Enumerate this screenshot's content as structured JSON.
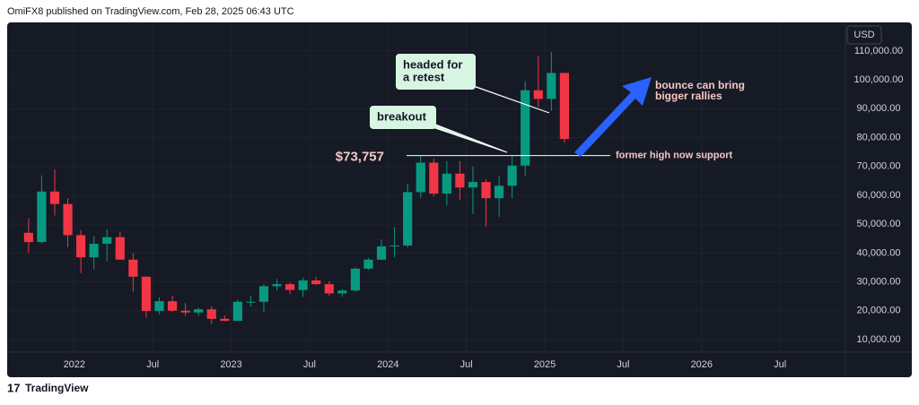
{
  "header": "OmiFX8 published on TradingView.com, Feb 28, 2025 06:43 UTC",
  "footer": "TradingView",
  "chart_data": {
    "type": "candlestick",
    "currency": "USD",
    "up_color": "#089981",
    "down_color": "#f23645",
    "x": [
      "2021-09",
      "2021-10",
      "2021-11",
      "2021-12",
      "2022-01",
      "2022-02",
      "2022-03",
      "2022-04",
      "2022-05",
      "2022-06",
      "2022-07",
      "2022-08",
      "2022-09",
      "2022-10",
      "2022-11",
      "2022-12",
      "2023-01",
      "2023-02",
      "2023-03",
      "2023-04",
      "2023-05",
      "2023-06",
      "2023-07",
      "2023-08",
      "2023-09",
      "2023-10",
      "2023-11",
      "2023-12",
      "2024-01",
      "2024-02",
      "2024-03",
      "2024-04",
      "2024-05",
      "2024-06",
      "2024-07",
      "2024-08",
      "2024-09",
      "2024-10",
      "2024-11",
      "2024-12",
      "2025-01",
      "2025-02"
    ],
    "open": [
      47000,
      43800,
      61300,
      57000,
      46200,
      38500,
      43200,
      45500,
      37700,
      31800,
      19900,
      23300,
      20000,
      19400,
      20500,
      17200,
      16500,
      23100,
      23100,
      28500,
      29200,
      27200,
      30500,
      29200,
      26000,
      27000,
      34600,
      37700,
      42300,
      42600,
      61100,
      71300,
      60600,
      67500,
      62700,
      64600,
      59000,
      63300,
      70300,
      96400,
      93400,
      102400
    ],
    "high": [
      52000,
      66900,
      69000,
      59000,
      47900,
      45800,
      48200,
      47400,
      40000,
      31900,
      24600,
      25200,
      22700,
      21000,
      21500,
      18400,
      23900,
      25200,
      29200,
      31000,
      29800,
      31400,
      31800,
      30200,
      27500,
      35000,
      38400,
      44700,
      48900,
      64000,
      73800,
      72700,
      71900,
      71900,
      70000,
      65600,
      66500,
      73600,
      99600,
      108300,
      109600,
      102500
    ],
    "low": [
      40000,
      43300,
      53000,
      42000,
      33000,
      34300,
      37200,
      37700,
      26700,
      17600,
      18800,
      19500,
      18200,
      18200,
      15500,
      16300,
      16500,
      21400,
      19600,
      27000,
      25800,
      24800,
      28900,
      25200,
      24900,
      26600,
      34100,
      37600,
      38500,
      41900,
      59000,
      59600,
      56500,
      58400,
      53500,
      49100,
      52500,
      58900,
      66800,
      90500,
      89200,
      78200
    ],
    "close": [
      43800,
      61300,
      57000,
      46200,
      38500,
      43200,
      45500,
      37700,
      31800,
      19900,
      23300,
      20000,
      19400,
      20500,
      17200,
      16500,
      23100,
      23100,
      28500,
      29200,
      27200,
      30500,
      29200,
      26000,
      27000,
      34600,
      37700,
      42300,
      42600,
      61100,
      71300,
      60600,
      67500,
      62700,
      64600,
      59000,
      63300,
      70300,
      96400,
      93400,
      102400,
      79500
    ],
    "xlim": [
      "2021-08",
      "2026-12"
    ],
    "xticks": [
      {
        "value": "2022-01",
        "label": "2022"
      },
      {
        "value": "2022-07",
        "label": "Jul"
      },
      {
        "value": "2023-01",
        "label": "2023"
      },
      {
        "value": "2023-07",
        "label": "Jul"
      },
      {
        "value": "2024-01",
        "label": "2024"
      },
      {
        "value": "2024-07",
        "label": "Jul"
      },
      {
        "value": "2025-01",
        "label": "2025"
      },
      {
        "value": "2025-07",
        "label": "Jul"
      },
      {
        "value": "2026-01",
        "label": "2026"
      },
      {
        "value": "2026-07",
        "label": "Jul"
      }
    ],
    "ylim": [
      5650,
      119600
    ],
    "yticks": [
      {
        "value": 10000,
        "label": "10,000.00"
      },
      {
        "value": 20000,
        "label": "20,000.00"
      },
      {
        "value": 30000,
        "label": "30,000.00"
      },
      {
        "value": 40000,
        "label": "40,000.00"
      },
      {
        "value": 50000,
        "label": "50,000.00"
      },
      {
        "value": 60000,
        "label": "60,000.00"
      },
      {
        "value": 70000,
        "label": "70,000.00"
      },
      {
        "value": 80000,
        "label": "80,000.00"
      },
      {
        "value": 90000,
        "label": "90,000.00"
      },
      {
        "value": 100000,
        "label": "100,000.00"
      },
      {
        "value": 110000,
        "label": "110,000.00"
      }
    ],
    "grid": true,
    "support": {
      "value": 73757,
      "label": "$73,757",
      "note": "former high now support"
    },
    "callouts": [
      [
        "breakout"
      ],
      [
        "headed for",
        "a retest"
      ]
    ],
    "arrow_note": [
      "bounce can bring",
      "bigger rallies"
    ]
  }
}
